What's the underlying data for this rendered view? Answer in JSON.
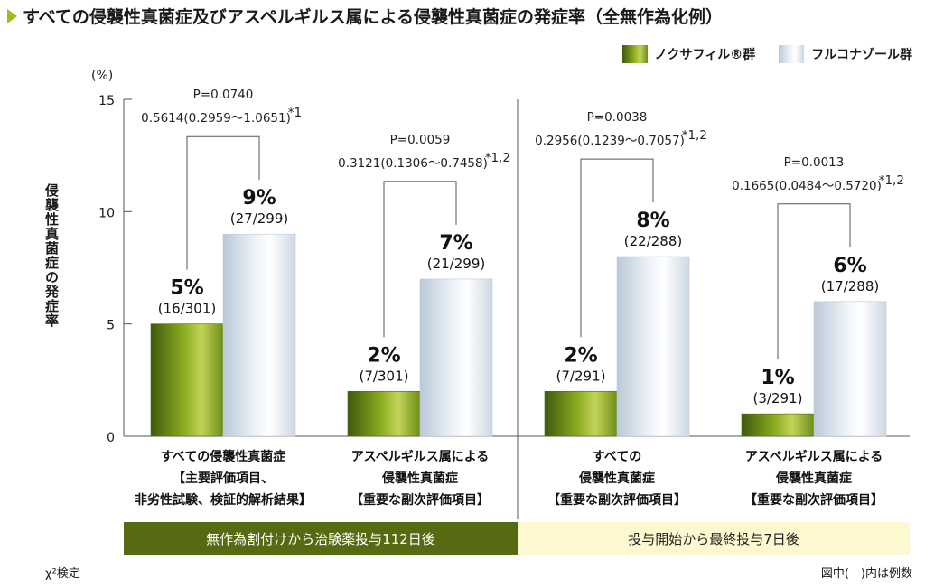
{
  "title": "すべての侵襲性真菌症及びアスペルギルス属による侵襲性真菌症の発症率（全無作為化例）",
  "legend": {
    "series1": "ノクサフィル®群",
    "series2": "フルコナゾール群"
  },
  "colors": {
    "series1": "#6f8e16",
    "series2": "#e6edf4",
    "band1": "#566a12",
    "band2": "#fdf8cf"
  },
  "y_unit": "(%)",
  "y_title": "侵襲性真菌症の発症率",
  "bands": [
    "無作為割付けから治験薬投与112日後",
    "投与開始から最終投与7日後"
  ],
  "footnote_left": "χ²検定",
  "footnote_right": "図中(　)内は例数",
  "chart_data": {
    "type": "bar",
    "ylim": [
      0,
      15
    ],
    "yticks": [
      0,
      5,
      10,
      15
    ],
    "series": [
      {
        "name": "ノクサフィル®群",
        "values": [
          5,
          2,
          2,
          1
        ],
        "pct_labels": [
          "5%",
          "2%",
          "2%",
          "1%"
        ],
        "frac_labels": [
          "(16/301)",
          "(7/301)",
          "(7/291)",
          "(3/291)"
        ]
      },
      {
        "name": "フルコナゾール群",
        "values": [
          9,
          7,
          8,
          6
        ],
        "pct_labels": [
          "9%",
          "7%",
          "8%",
          "6%"
        ],
        "frac_labels": [
          "(27/299)",
          "(21/299)",
          "(22/288)",
          "(17/288)"
        ]
      }
    ],
    "categories": [
      [
        "すべての侵襲性真菌症",
        "【主要評価項目、",
        "非劣性試験、検証的解析結果】"
      ],
      [
        "アスペルギルス属による",
        "侵襲性真菌症",
        "【重要な副次評価項目】"
      ],
      [
        "すべての",
        "侵襲性真菌症",
        "【重要な副次評価項目】"
      ],
      [
        "アスペルギルス属による",
        "侵襲性真菌症",
        "【重要な副次評価項目】"
      ]
    ],
    "stats": [
      {
        "p": "P=0.0740",
        "ci": "0.5614(0.2959～1.0651)",
        "note": "*1"
      },
      {
        "p": "P=0.0059",
        "ci": "0.3121(0.1306～0.7458)",
        "note": "*1,2"
      },
      {
        "p": "P=0.0038",
        "ci": "0.2956(0.1239～0.7057)",
        "note": "*1,2"
      },
      {
        "p": "P=0.0013",
        "ci": "0.1665(0.0484～0.5720)",
        "note": "*1,2"
      }
    ]
  }
}
